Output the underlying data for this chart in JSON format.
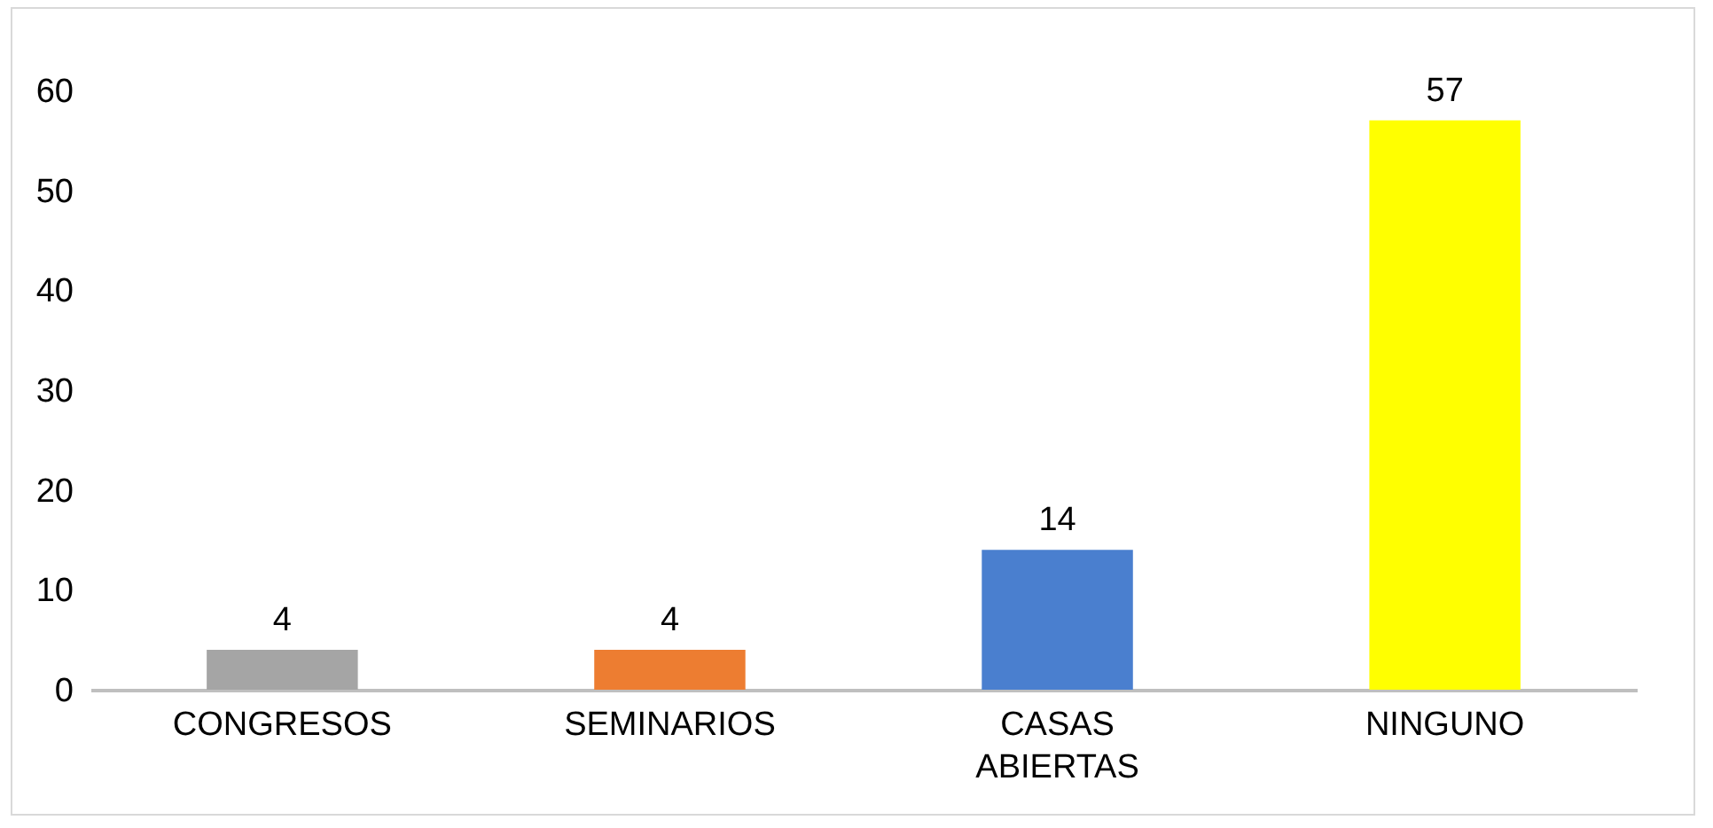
{
  "chart_data": {
    "type": "bar",
    "categories": [
      "CONGRESOS",
      "SEMINARIOS",
      "CASAS ABIERTAS",
      "NINGUNO"
    ],
    "values": [
      4,
      4,
      14,
      57
    ],
    "colors": [
      "#a5a5a5",
      "#ed7d31",
      "#4a7fcf",
      "#ffff00"
    ],
    "ylim": [
      0,
      60
    ],
    "yticks": [
      0,
      10,
      20,
      30,
      40,
      50,
      60
    ],
    "grid": false,
    "data_labels": true
  }
}
